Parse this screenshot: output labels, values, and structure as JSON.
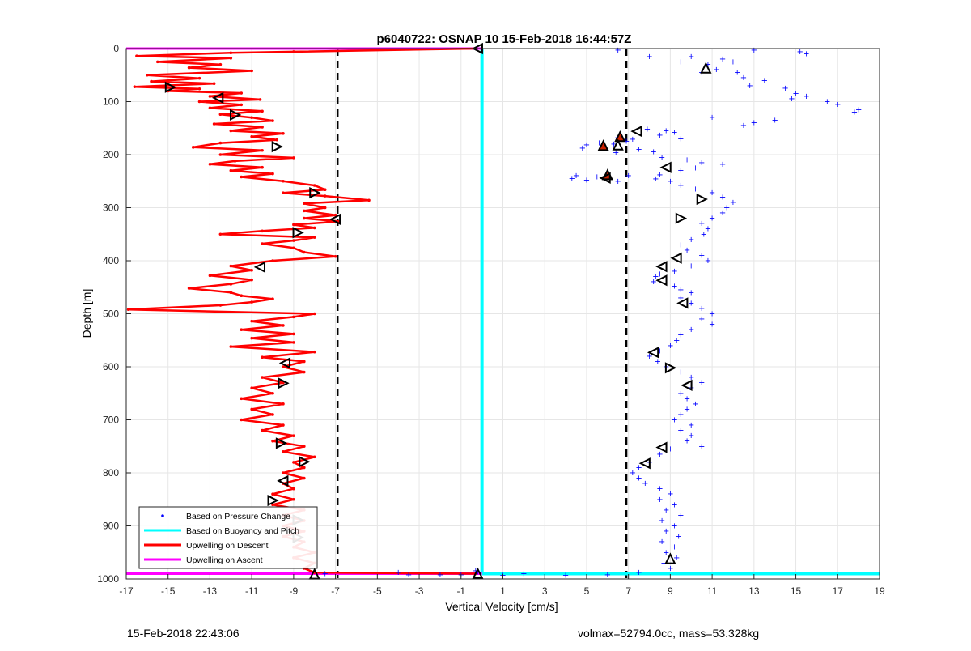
{
  "chart_data": {
    "type": "scatter",
    "title": "p6040722: OSNAP 10 15-Feb-2018 16:44:57Z",
    "xlabel": "Vertical Velocity [cm/s]",
    "ylabel": "Depth [m]",
    "xlim": [
      -17,
      19
    ],
    "ylim": [
      0,
      1000
    ],
    "y_reversed": true,
    "grid": true,
    "legend_position": "bottom-left",
    "x_ticks": [
      "-17",
      "-15",
      "-13",
      "-11",
      "-9",
      "-7",
      "-5",
      "-3",
      "-1",
      "1",
      "3",
      "5",
      "7",
      "9",
      "11",
      "13",
      "15",
      "17",
      "19"
    ],
    "y_ticks": [
      "0",
      "100",
      "200",
      "300",
      "400",
      "500",
      "600",
      "700",
      "800",
      "900",
      "1000"
    ],
    "colors": {
      "pressure": "#0000ff",
      "buoyancy": "#00ffff",
      "descent": "#ff0000",
      "ascent": "#ff00ff",
      "dashed": "#000000"
    },
    "series": [
      {
        "name": "Based on Pressure Change",
        "kind": "scatter",
        "color": "#0000ff"
      },
      {
        "name": "Based on Buoyancy and Pitch",
        "kind": "line",
        "color": "#00ffff"
      },
      {
        "name": "Upwelling on Descent",
        "kind": "line",
        "color": "#ff0000"
      },
      {
        "name": "Upwelling on Ascent",
        "kind": "line",
        "color": "#ff00ff"
      }
    ],
    "descent_profile": [
      [
        -0.3,
        0
      ],
      [
        -9,
        6
      ],
      [
        -12,
        8
      ],
      [
        -16.5,
        14
      ],
      [
        -12,
        18
      ],
      [
        -15.5,
        25
      ],
      [
        -12.5,
        30
      ],
      [
        -14,
        36
      ],
      [
        -11,
        42
      ],
      [
        -16,
        50
      ],
      [
        -13.5,
        56
      ],
      [
        -15.8,
        62
      ],
      [
        -12.8,
        66
      ],
      [
        -16.6,
        72
      ],
      [
        -13.5,
        76
      ],
      [
        -15,
        80
      ],
      [
        -11.5,
        84
      ],
      [
        -13,
        90
      ],
      [
        -10.6,
        96
      ],
      [
        -13.5,
        100
      ],
      [
        -11.5,
        106
      ],
      [
        -13,
        112
      ],
      [
        -10.5,
        118
      ],
      [
        -12.5,
        124
      ],
      [
        -11,
        130
      ],
      [
        -10,
        136
      ],
      [
        -12.8,
        142
      ],
      [
        -10.5,
        148
      ],
      [
        -12,
        155
      ],
      [
        -9.5,
        160
      ],
      [
        -11,
        166
      ],
      [
        -9.8,
        172
      ],
      [
        -12.5,
        178
      ],
      [
        -13.8,
        186
      ],
      [
        -10.5,
        192
      ],
      [
        -12.5,
        200
      ],
      [
        -9,
        206
      ],
      [
        -11.8,
        212
      ],
      [
        -13,
        218
      ],
      [
        -10.5,
        224
      ],
      [
        -12,
        230
      ],
      [
        -10,
        236
      ],
      [
        -11.5,
        242
      ],
      [
        -9.5,
        250
      ],
      [
        -8,
        258
      ],
      [
        -7.5,
        266
      ],
      [
        -9.5,
        272
      ],
      [
        -7.5,
        278
      ],
      [
        -5.4,
        286
      ],
      [
        -8.5,
        292
      ],
      [
        -7.5,
        300
      ],
      [
        -8.5,
        306
      ],
      [
        -7,
        314
      ],
      [
        -8.5,
        320
      ],
      [
        -6.8,
        326
      ],
      [
        -9,
        332
      ],
      [
        -8,
        338
      ],
      [
        -10.5,
        344
      ],
      [
        -12.5,
        350
      ],
      [
        -8,
        356
      ],
      [
        -9,
        362
      ],
      [
        -10.5,
        368
      ],
      [
        -9,
        376
      ],
      [
        -8.5,
        384
      ],
      [
        -7,
        392
      ],
      [
        -10,
        400
      ],
      [
        -12,
        410
      ],
      [
        -11,
        418
      ],
      [
        -13,
        428
      ],
      [
        -11,
        436
      ],
      [
        -12,
        444
      ],
      [
        -14,
        452
      ],
      [
        -12,
        460
      ],
      [
        -11.5,
        466
      ],
      [
        -10,
        472
      ],
      [
        -11,
        478
      ],
      [
        -12.5,
        484
      ],
      [
        -16.9,
        492
      ],
      [
        -8,
        500
      ],
      [
        -9,
        506
      ],
      [
        -11,
        514
      ],
      [
        -9.5,
        522
      ],
      [
        -11.5,
        530
      ],
      [
        -9,
        538
      ],
      [
        -11,
        546
      ],
      [
        -9,
        554
      ],
      [
        -12,
        562
      ],
      [
        -8,
        572
      ],
      [
        -10.5,
        582
      ],
      [
        -8.5,
        590
      ],
      [
        -9.5,
        600
      ],
      [
        -8.5,
        610
      ],
      [
        -10.5,
        620
      ],
      [
        -9.5,
        630
      ],
      [
        -11,
        640
      ],
      [
        -10,
        650
      ],
      [
        -11.5,
        660
      ],
      [
        -9.5,
        670
      ],
      [
        -11,
        680
      ],
      [
        -10,
        690
      ],
      [
        -11.5,
        700
      ],
      [
        -9.5,
        710
      ],
      [
        -10.5,
        720
      ],
      [
        -9,
        730
      ],
      [
        -10,
        740
      ],
      [
        -8.5,
        750
      ],
      [
        -9.5,
        760
      ],
      [
        -8,
        770
      ],
      [
        -9,
        780
      ],
      [
        -8.5,
        790
      ],
      [
        -9.5,
        800
      ],
      [
        -8.5,
        810
      ],
      [
        -9.5,
        820
      ],
      [
        -9,
        830
      ],
      [
        -10,
        840
      ],
      [
        -9,
        850
      ],
      [
        -10,
        860
      ],
      [
        -8.5,
        870
      ],
      [
        -9.5,
        880
      ],
      [
        -8.5,
        890
      ],
      [
        -9.5,
        900
      ],
      [
        -8.5,
        910
      ],
      [
        -9.5,
        920
      ],
      [
        -8.5,
        930
      ],
      [
        -9,
        940
      ],
      [
        -8,
        950
      ],
      [
        -9,
        960
      ],
      [
        -8,
        970
      ],
      [
        -8.5,
        980
      ],
      [
        -8,
        988
      ],
      [
        -0.3,
        990
      ]
    ],
    "pressure_points": [
      [
        6.5,
        3
      ],
      [
        13,
        3
      ],
      [
        15.2,
        6
      ],
      [
        15.5,
        10
      ],
      [
        8,
        15
      ],
      [
        10,
        15
      ],
      [
        11.5,
        20
      ],
      [
        12,
        25
      ],
      [
        9.5,
        25
      ],
      [
        10.8,
        30
      ],
      [
        11.2,
        40
      ],
      [
        10.5,
        45
      ],
      [
        12.2,
        45
      ],
      [
        12.5,
        55
      ],
      [
        13.5,
        60
      ],
      [
        12.8,
        70
      ],
      [
        14.5,
        75
      ],
      [
        15,
        85
      ],
      [
        15.5,
        90
      ],
      [
        14.8,
        95
      ],
      [
        16.5,
        100
      ],
      [
        17,
        105
      ],
      [
        17.8,
        120
      ],
      [
        18,
        115
      ],
      [
        13,
        140
      ],
      [
        14,
        135
      ],
      [
        12.5,
        145
      ],
      [
        11,
        130
      ],
      [
        9.2,
        158
      ],
      [
        8.5,
        163
      ],
      [
        7.9,
        152
      ],
      [
        8.8,
        155
      ],
      [
        9.5,
        170
      ],
      [
        7.2,
        171
      ],
      [
        6.9,
        175
      ],
      [
        6.5,
        168
      ],
      [
        5.6,
        178
      ],
      [
        5,
        182
      ],
      [
        4.8,
        188
      ],
      [
        6.3,
        180
      ],
      [
        6.4,
        196
      ],
      [
        7.5,
        190
      ],
      [
        8.2,
        195
      ],
      [
        8.6,
        205
      ],
      [
        9.8,
        210
      ],
      [
        10.5,
        215
      ],
      [
        11.5,
        218
      ],
      [
        10.2,
        225
      ],
      [
        9.5,
        230
      ],
      [
        8.5,
        238
      ],
      [
        7,
        240
      ],
      [
        5.5,
        242
      ],
      [
        5,
        248
      ],
      [
        4.5,
        240
      ],
      [
        4.3,
        245
      ],
      [
        6.5,
        250
      ],
      [
        8.3,
        246
      ],
      [
        9,
        250
      ],
      [
        9.5,
        258
      ],
      [
        10.2,
        265
      ],
      [
        11,
        272
      ],
      [
        11.5,
        280
      ],
      [
        12,
        290
      ],
      [
        11.7,
        300
      ],
      [
        11.5,
        310
      ],
      [
        11,
        320
      ],
      [
        10.5,
        330
      ],
      [
        10.8,
        340
      ],
      [
        10.6,
        350
      ],
      [
        10,
        360
      ],
      [
        9.5,
        370
      ],
      [
        9.8,
        380
      ],
      [
        10.5,
        390
      ],
      [
        10.8,
        400
      ],
      [
        10,
        410
      ],
      [
        9.2,
        420
      ],
      [
        8.5,
        425
      ],
      [
        8.3,
        430
      ],
      [
        8.2,
        440
      ],
      [
        9.2,
        448
      ],
      [
        9.5,
        455
      ],
      [
        10,
        460
      ],
      [
        9.5,
        470
      ],
      [
        10,
        480
      ],
      [
        10.5,
        490
      ],
      [
        11,
        500
      ],
      [
        10.5,
        510
      ],
      [
        11,
        520
      ],
      [
        10,
        530
      ],
      [
        9.5,
        540
      ],
      [
        9.3,
        550
      ],
      [
        9,
        560
      ],
      [
        8.5,
        570
      ],
      [
        8,
        580
      ],
      [
        8.4,
        590
      ],
      [
        8.8,
        600
      ],
      [
        9.5,
        610
      ],
      [
        10,
        620
      ],
      [
        10.5,
        630
      ],
      [
        10,
        640
      ],
      [
        9.5,
        650
      ],
      [
        9.8,
        660
      ],
      [
        10.2,
        670
      ],
      [
        9.8,
        680
      ],
      [
        9.5,
        690
      ],
      [
        9.2,
        700
      ],
      [
        10,
        710
      ],
      [
        9.5,
        720
      ],
      [
        10,
        730
      ],
      [
        9.8,
        740
      ],
      [
        10.5,
        750
      ],
      [
        9,
        755
      ],
      [
        8.5,
        765
      ],
      [
        8,
        780
      ],
      [
        7.5,
        790
      ],
      [
        7.2,
        800
      ],
      [
        7.5,
        810
      ],
      [
        7.8,
        820
      ],
      [
        8.5,
        830
      ],
      [
        9,
        840
      ],
      [
        8.5,
        850
      ],
      [
        9.2,
        860
      ],
      [
        8.8,
        870
      ],
      [
        9.5,
        880
      ],
      [
        8.6,
        890
      ],
      [
        9.2,
        900
      ],
      [
        8.8,
        910
      ],
      [
        9.4,
        920
      ],
      [
        8.6,
        930
      ],
      [
        9.2,
        940
      ],
      [
        8.8,
        950
      ],
      [
        9.3,
        960
      ],
      [
        8.7,
        970
      ],
      [
        9,
        980
      ],
      [
        -0.2,
        987
      ],
      [
        -0.3,
        985
      ],
      [
        -1,
        992
      ],
      [
        -2,
        992
      ],
      [
        -3.5,
        992
      ],
      [
        1,
        993
      ],
      [
        2,
        990
      ],
      [
        4,
        993
      ],
      [
        6,
        992
      ],
      [
        7.5,
        988
      ],
      [
        -4,
        988
      ],
      [
        -7.5,
        990
      ]
    ],
    "descent_markers": [
      [
        -14.9,
        73,
        "r"
      ],
      [
        -12.6,
        93,
        "l"
      ],
      [
        -11.8,
        125,
        "r"
      ],
      [
        -9.8,
        185,
        "r"
      ],
      [
        -8,
        272,
        "r"
      ],
      [
        -7,
        322,
        "l"
      ],
      [
        -8.8,
        347,
        "r"
      ],
      [
        -10.6,
        412,
        "l"
      ],
      [
        -9.4,
        593,
        "l"
      ],
      [
        -9.5,
        631,
        "r"
      ],
      [
        -9.6,
        744,
        "r"
      ],
      [
        -8.5,
        779,
        "r"
      ],
      [
        -9.5,
        815,
        "l"
      ],
      [
        -10,
        852,
        "r"
      ],
      [
        -8.8,
        889,
        "r"
      ],
      [
        -8.8,
        922,
        "r"
      ],
      [
        -8,
        991,
        "u"
      ],
      [
        -0.2,
        0,
        "l"
      ],
      [
        -0.2,
        990,
        "u"
      ]
    ],
    "pressure_markers": [
      [
        10.7,
        37,
        "u"
      ],
      [
        7.4,
        156,
        "l"
      ],
      [
        6.6,
        166,
        "u"
      ],
      [
        6.5,
        182,
        "u"
      ],
      [
        5.8,
        183,
        "u"
      ],
      [
        8.8,
        224,
        "l"
      ],
      [
        6,
        238,
        "u"
      ],
      [
        5.9,
        244,
        "l"
      ],
      [
        10.5,
        284,
        "r"
      ],
      [
        9.5,
        320,
        "r"
      ],
      [
        9.3,
        395,
        "l"
      ],
      [
        8.6,
        411,
        "l"
      ],
      [
        8.6,
        437,
        "l"
      ],
      [
        9.6,
        480,
        "l"
      ],
      [
        8.2,
        573,
        "l"
      ],
      [
        9,
        602,
        "r"
      ],
      [
        9.8,
        635,
        "l"
      ],
      [
        8.6,
        752,
        "l"
      ],
      [
        7.8,
        782,
        "l"
      ],
      [
        9,
        962,
        "u"
      ]
    ],
    "filled_markers": [
      [
        6.6,
        166
      ],
      [
        5.8,
        183
      ],
      [
        6,
        238
      ]
    ],
    "dashed_lines": [
      -6.9,
      6.9
    ]
  },
  "footer": {
    "left": "15-Feb-2018 22:43:06",
    "right": "volmax=52794.0cc, mass=53.328kg"
  }
}
